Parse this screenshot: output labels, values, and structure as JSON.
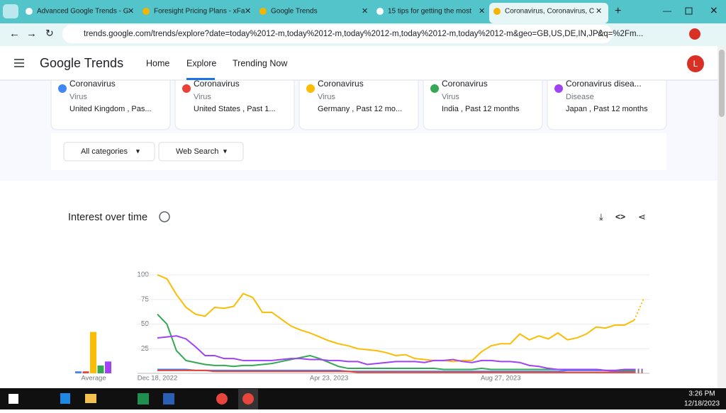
{
  "browser": {
    "tabs": [
      "Advanced Google Trends - G",
      "Foresight Pricing Plans - xFa",
      "Google Trends",
      "15 tips for getting the most",
      "Coronavirus, Coronavirus, C"
    ],
    "url": "trends.google.com/trends/explore?date=today%2012-m,today%2012-m,today%2012-m,today%2012-m,today%2012-m&geo=GB,US,DE,IN,JP&q=%2Fm..."
  },
  "header": {
    "logo": "Google Trends",
    "nav": [
      "Home",
      "Explore",
      "Trending Now"
    ],
    "avatar": "L"
  },
  "comparisons": [
    {
      "term": "Coronavirus",
      "type": "Virus",
      "scope": "United Kingdom , Pas..."
    },
    {
      "term": "Coronavirus",
      "type": "Virus",
      "scope": "United States , Past 1..."
    },
    {
      "term": "Coronavirus",
      "type": "Virus",
      "scope": "Germany , Past 12 mo..."
    },
    {
      "term": "Coronavirus",
      "type": "Virus",
      "scope": "India , Past 12 months"
    },
    {
      "term": "Coronavirus disea...",
      "type": "Disease",
      "scope": "Japan , Past 12 months"
    }
  ],
  "filters": [
    "All categories",
    "Web Search"
  ],
  "chart_data": {
    "type": "line",
    "title": "Interest over time",
    "average_label": "Average",
    "partial_last_point": true,
    "grid": true,
    "categories": [
      "Dec 18, 2022",
      null,
      null,
      null,
      null,
      null,
      null,
      null,
      null,
      null,
      null,
      null,
      null,
      null,
      null,
      null,
      null,
      null,
      "Apr 23, 2023",
      null,
      null,
      null,
      null,
      null,
      null,
      null,
      null,
      null,
      null,
      null,
      null,
      null,
      null,
      null,
      null,
      null,
      "Aug 27, 2023",
      null,
      null,
      null,
      null,
      null,
      null,
      null,
      null,
      null,
      null,
      null,
      null,
      null,
      null,
      null
    ],
    "ylim": [
      0,
      100
    ],
    "yticks": [
      25,
      50,
      75,
      100
    ],
    "series": [
      {
        "name": "Coronavirus",
        "color": "#4285f4",
        "average": 2,
        "values": [
          4,
          4,
          4,
          4,
          3,
          3,
          3,
          3,
          3,
          3,
          3,
          3,
          3,
          3,
          3,
          3,
          3,
          3,
          3,
          3,
          2,
          2,
          2,
          2,
          2,
          2,
          2,
          2,
          2,
          2,
          2,
          2,
          2,
          2,
          2,
          2,
          2,
          2,
          2,
          2,
          2,
          2,
          2,
          3,
          3,
          3,
          3,
          3,
          2,
          2,
          2,
          2
        ]
      },
      {
        "name": "Coronavirus",
        "color": "#ea4335",
        "average": 2,
        "values": [
          3,
          3,
          3,
          3,
          3,
          3,
          2,
          2,
          2,
          2,
          2,
          2,
          2,
          2,
          2,
          2,
          2,
          2,
          2,
          2,
          2,
          1,
          1,
          1,
          1,
          1,
          1,
          1,
          1,
          1,
          1,
          1,
          1,
          1,
          1,
          1,
          1,
          1,
          1,
          1,
          1,
          1,
          1,
          1,
          1,
          1,
          1,
          1,
          1,
          1,
          1,
          1
        ]
      },
      {
        "name": "Coronavirus",
        "color": "#fbbc04",
        "average": 42,
        "values": [
          100,
          96,
          80,
          67,
          60,
          58,
          67,
          66,
          68,
          81,
          77,
          62,
          62,
          55,
          48,
          44,
          41,
          37,
          33,
          30,
          28,
          25,
          24,
          23,
          21,
          18,
          19,
          15,
          14,
          13,
          13,
          12,
          13,
          13,
          22,
          28,
          30,
          30,
          40,
          34,
          38,
          35,
          41,
          34,
          36,
          40,
          47,
          46,
          49,
          49,
          54,
          76
        ]
      },
      {
        "name": "Coronavirus",
        "color": "#34a853",
        "average": 8,
        "values": [
          60,
          50,
          23,
          13,
          11,
          9,
          8,
          8,
          7,
          8,
          8,
          9,
          10,
          12,
          14,
          16,
          18,
          15,
          11,
          7,
          5,
          5,
          5,
          5,
          5,
          5,
          5,
          5,
          5,
          5,
          4,
          4,
          4,
          4,
          5,
          4,
          4,
          4,
          4,
          4,
          4,
          4,
          4,
          4,
          4,
          4,
          4,
          3,
          3,
          3,
          3,
          3
        ]
      },
      {
        "name": "Coronavirus disea...",
        "color": "#a142f4",
        "average": 12,
        "values": [
          36,
          37,
          38,
          35,
          27,
          18,
          18,
          15,
          15,
          13,
          13,
          13,
          13,
          14,
          15,
          15,
          14,
          14,
          13,
          13,
          12,
          12,
          9,
          10,
          11,
          12,
          12,
          12,
          11,
          13,
          13,
          14,
          12,
          11,
          13,
          13,
          12,
          12,
          11,
          8,
          7,
          5,
          4,
          4,
          4,
          4,
          4,
          3,
          3,
          4,
          4,
          4
        ]
      }
    ]
  },
  "taskbar": {
    "time": "3:26 PM",
    "date": "12/18/2023"
  }
}
